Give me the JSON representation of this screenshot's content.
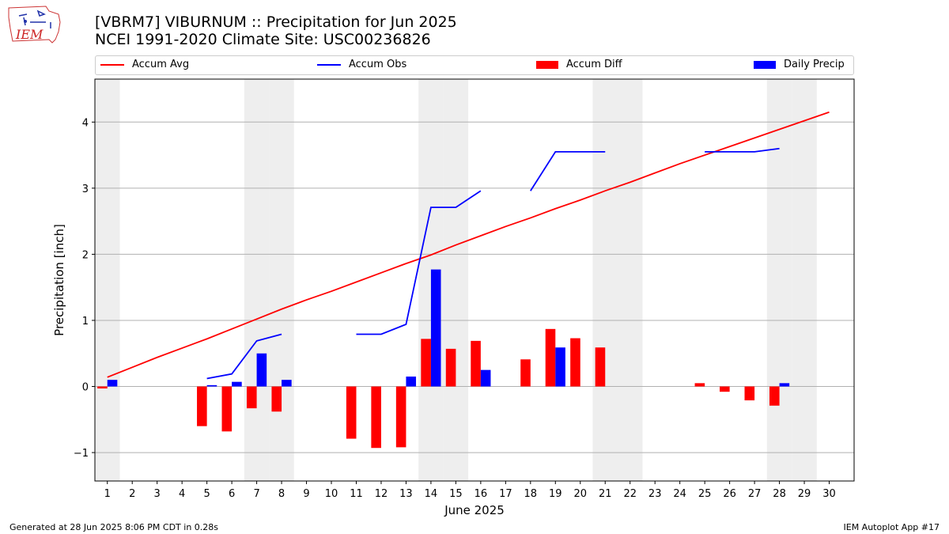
{
  "header": {
    "title_line1": "[VBRM7] VIBURNUM :: Precipitation for Jun 2025",
    "title_line2": "NCEI 1991-2020 Climate Site: USC00236826"
  },
  "logo": {
    "text": "IEM"
  },
  "footer": {
    "left": "Generated at 28 Jun 2025 8:06 PM CDT in 0.28s",
    "right": "IEM Autoplot App #17"
  },
  "colors": {
    "avg": "#ff0000",
    "obs": "#0000ff",
    "diff": "#ff0000",
    "daily": "#0000ff",
    "weekend": "#eeeeee"
  },
  "chart_data": {
    "type": "bar",
    "xlabel": "June 2025",
    "ylabel": "Precipitation [inch]",
    "xlim": [
      0.5,
      31.0
    ],
    "ylim": [
      -1.43,
      4.65
    ],
    "yticks": [
      -1,
      0,
      1,
      2,
      3,
      4
    ],
    "ytick_labels": [
      "−1",
      "0",
      "1",
      "2",
      "3",
      "4"
    ],
    "xticks": [
      1,
      2,
      3,
      4,
      5,
      6,
      7,
      8,
      9,
      10,
      11,
      12,
      13,
      14,
      15,
      16,
      17,
      18,
      19,
      20,
      21,
      22,
      23,
      24,
      25,
      26,
      27,
      28,
      29,
      30
    ],
    "grid": "horizontal",
    "legend_position": "top",
    "weekend_days": [
      1,
      7,
      8,
      14,
      15,
      21,
      22,
      28,
      29
    ],
    "legend": [
      {
        "label": "Accum Avg",
        "kind": "line",
        "color": "#ff0000"
      },
      {
        "label": "Accum Obs",
        "kind": "line",
        "color": "#0000ff"
      },
      {
        "label": "Accum Diff",
        "kind": "bar",
        "color": "#ff0000"
      },
      {
        "label": "Daily Precip",
        "kind": "bar",
        "color": "#0000ff"
      }
    ],
    "accum_avg": {
      "name": "Accum Avg",
      "x": [
        1,
        2,
        3,
        4,
        5,
        6,
        7,
        8,
        9,
        10,
        11,
        12,
        13,
        14,
        15,
        16,
        17,
        18,
        19,
        20,
        21,
        22,
        23,
        24,
        25,
        26,
        27,
        28,
        29,
        30
      ],
      "y": [
        0.14,
        0.29,
        0.44,
        0.58,
        0.72,
        0.87,
        1.02,
        1.17,
        1.31,
        1.44,
        1.58,
        1.72,
        1.86,
        1.99,
        2.14,
        2.28,
        2.42,
        2.55,
        2.69,
        2.82,
        2.96,
        3.09,
        3.23,
        3.37,
        3.5,
        3.63,
        3.76,
        3.89,
        4.02,
        4.15
      ]
    },
    "accum_obs": {
      "name": "Accum Obs",
      "segments": [
        {
          "x": [
            5,
            6,
            7,
            8
          ],
          "y": [
            0.12,
            0.19,
            0.69,
            0.79
          ]
        },
        {
          "x": [
            11,
            12,
            13,
            14,
            15,
            16
          ],
          "y": [
            0.79,
            0.79,
            0.94,
            2.71,
            2.71,
            2.96
          ]
        },
        {
          "x": [
            18,
            19,
            20,
            21
          ],
          "y": [
            2.96,
            3.55,
            3.55,
            3.55
          ]
        },
        {
          "x": [
            25,
            26,
            27,
            28
          ],
          "y": [
            3.55,
            3.55,
            3.55,
            3.6
          ]
        }
      ]
    },
    "accum_diff": {
      "name": "Accum Diff",
      "x": [
        1,
        5,
        6,
        7,
        8,
        11,
        12,
        13,
        14,
        15,
        16,
        18,
        19,
        20,
        21,
        25,
        26,
        27,
        28
      ],
      "y": [
        -0.03,
        -0.6,
        -0.68,
        -0.33,
        -0.38,
        -0.79,
        -0.93,
        -0.92,
        0.72,
        0.57,
        0.69,
        0.41,
        0.87,
        0.73,
        0.59,
        0.05,
        -0.08,
        -0.21,
        -0.29
      ]
    },
    "daily_precip": {
      "name": "Daily Precip",
      "x": [
        1,
        5,
        6,
        7,
        8,
        13,
        14,
        16,
        19,
        28
      ],
      "y": [
        0.1,
        0.02,
        0.07,
        0.5,
        0.1,
        0.15,
        1.77,
        0.25,
        0.59,
        0.05
      ]
    }
  }
}
